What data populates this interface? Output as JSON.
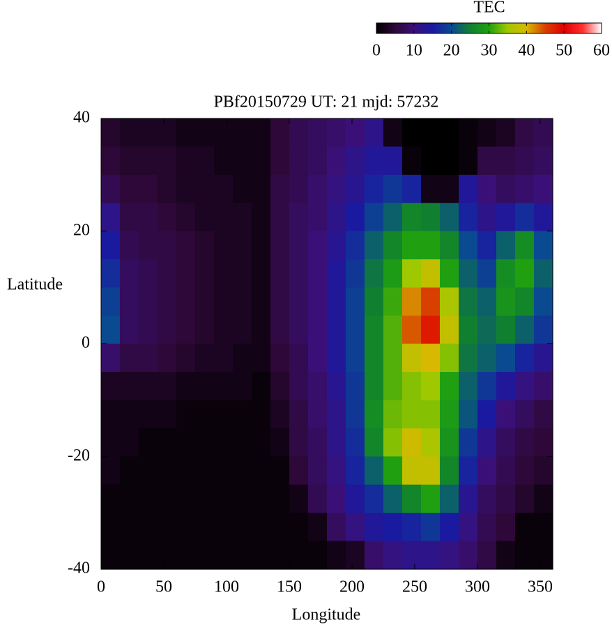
{
  "chart_data": {
    "type": "heatmap",
    "title": "PBf20150729  UT: 21  mjd: 57232",
    "x_label": "Longitude",
    "y_label": "Latitude",
    "xlim": [
      0,
      360
    ],
    "xticks": [
      0,
      50,
      100,
      150,
      200,
      250,
      300,
      350
    ],
    "ylim": [
      -40,
      40
    ],
    "yticks": [
      -40,
      -20,
      0,
      20,
      40
    ],
    "x": [
      7.5,
      22.5,
      37.5,
      52.5,
      67.5,
      82.5,
      97.5,
      112.5,
      127.5,
      142.5,
      157.5,
      172.5,
      187.5,
      202.5,
      217.5,
      232.5,
      247.5,
      262.5,
      277.5,
      292.5,
      307.5,
      322.5,
      337.5,
      352.5
    ],
    "y": [
      37.5,
      32.5,
      27.5,
      22.5,
      17.5,
      12.5,
      7.5,
      2.5,
      -2.5,
      -7.5,
      -12.5,
      -17.5,
      -22.5,
      -27.5,
      -32.5,
      -37.5
    ],
    "values": [
      [
        4,
        3,
        3,
        3,
        2,
        2,
        2,
        2,
        2,
        5,
        7,
        8,
        9,
        10,
        12,
        2,
        0,
        0,
        0,
        1,
        2,
        3,
        6,
        7
      ],
      [
        5,
        4,
        4,
        4,
        3,
        3,
        2,
        2,
        2,
        5,
        7,
        8,
        10,
        12,
        14,
        14,
        1,
        0,
        0,
        1,
        6,
        6,
        7,
        8
      ],
      [
        7,
        5,
        5,
        4,
        3,
        3,
        3,
        2,
        2,
        6,
        7,
        9,
        11,
        13,
        16,
        18,
        16,
        2,
        2,
        14,
        10,
        8,
        9,
        10
      ],
      [
        12,
        6,
        6,
        5,
        4,
        3,
        3,
        3,
        2,
        6,
        8,
        9,
        12,
        15,
        19,
        22,
        26,
        25,
        22,
        16,
        12,
        14,
        17,
        14
      ],
      [
        15,
        7,
        6,
        6,
        5,
        4,
        3,
        3,
        2,
        6,
        8,
        10,
        13,
        17,
        22,
        26,
        30,
        30,
        26,
        20,
        16,
        22,
        27,
        20
      ],
      [
        17,
        8,
        7,
        6,
        5,
        4,
        3,
        3,
        2,
        6,
        8,
        10,
        14,
        18,
        24,
        29,
        35,
        38,
        30,
        22,
        19,
        27,
        30,
        22
      ],
      [
        19,
        8,
        7,
        6,
        5,
        4,
        3,
        3,
        2,
        6,
        8,
        10,
        14,
        19,
        25,
        31,
        42,
        45,
        36,
        24,
        22,
        28,
        26,
        20
      ],
      [
        20,
        8,
        7,
        6,
        5,
        4,
        3,
        3,
        2,
        6,
        8,
        10,
        14,
        19,
        26,
        32,
        44,
        48,
        38,
        25,
        23,
        25,
        22,
        18
      ],
      [
        9,
        6,
        6,
        5,
        4,
        3,
        3,
        2,
        2,
        5,
        7,
        10,
        14,
        19,
        26,
        32,
        38,
        40,
        34,
        24,
        22,
        20,
        16,
        13
      ],
      [
        3,
        3,
        3,
        3,
        2,
        2,
        2,
        2,
        1,
        4,
        7,
        9,
        13,
        18,
        26,
        32,
        34,
        35,
        30,
        22,
        18,
        14,
        11,
        9
      ],
      [
        2,
        2,
        2,
        2,
        1,
        1,
        1,
        1,
        1,
        3,
        6,
        9,
        12,
        18,
        27,
        33,
        34,
        34,
        29,
        21,
        15,
        10,
        8,
        6
      ],
      [
        2,
        2,
        1,
        1,
        1,
        1,
        1,
        1,
        1,
        2,
        6,
        8,
        12,
        17,
        26,
        34,
        39,
        36,
        28,
        18,
        12,
        8,
        6,
        5
      ],
      [
        2,
        1,
        1,
        1,
        1,
        1,
        1,
        1,
        1,
        1,
        5,
        8,
        11,
        16,
        22,
        30,
        38,
        38,
        26,
        16,
        10,
        7,
        5,
        4
      ],
      [
        1,
        1,
        1,
        1,
        1,
        1,
        1,
        1,
        1,
        1,
        2,
        7,
        10,
        14,
        17,
        22,
        26,
        30,
        22,
        13,
        8,
        6,
        4,
        2
      ],
      [
        1,
        1,
        1,
        1,
        1,
        1,
        1,
        1,
        1,
        1,
        1,
        2,
        8,
        11,
        14,
        15,
        16,
        18,
        15,
        11,
        7,
        5,
        1,
        1
      ],
      [
        1,
        1,
        1,
        1,
        1,
        1,
        1,
        1,
        1,
        1,
        1,
        1,
        2,
        3,
        9,
        11,
        12,
        12,
        11,
        9,
        6,
        2,
        1,
        1
      ]
    ],
    "colorbar": {
      "label": "TEC",
      "lim": [
        0,
        60
      ],
      "ticks": [
        0,
        10,
        20,
        30,
        40,
        50,
        60
      ]
    },
    "colormap": [
      "#000000",
      "#2e0838",
      "#3a1078",
      "#1a1aa0",
      "#0a4a90",
      "#108030",
      "#20a010",
      "#a0c800",
      "#d8b800",
      "#d84000",
      "#e00000",
      "#ff3030",
      "#ffffff"
    ]
  }
}
